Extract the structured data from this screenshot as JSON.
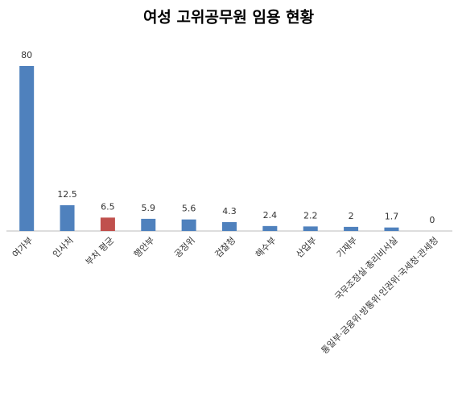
{
  "chart_data": {
    "type": "bar",
    "title": "여성 고위공무원 임용 현황",
    "categories": [
      "여가부",
      "인사처",
      "부처 평균",
      "행안부",
      "공정위",
      "검찰청",
      "해수부",
      "산업부",
      "기재부",
      "국무조정실·총리비서실",
      "통일부·금융위·방통위·인권위·국세청·관세청"
    ],
    "values": [
      80,
      12.5,
      6.5,
      5.9,
      5.6,
      4.3,
      2.4,
      2.2,
      2,
      1.7,
      0
    ],
    "colors": [
      "#4f81bd",
      "#4f81bd",
      "#c0504d",
      "#4f81bd",
      "#4f81bd",
      "#4f81bd",
      "#4f81bd",
      "#4f81bd",
      "#4f81bd",
      "#4f81bd",
      "#4f81bd"
    ]
  }
}
